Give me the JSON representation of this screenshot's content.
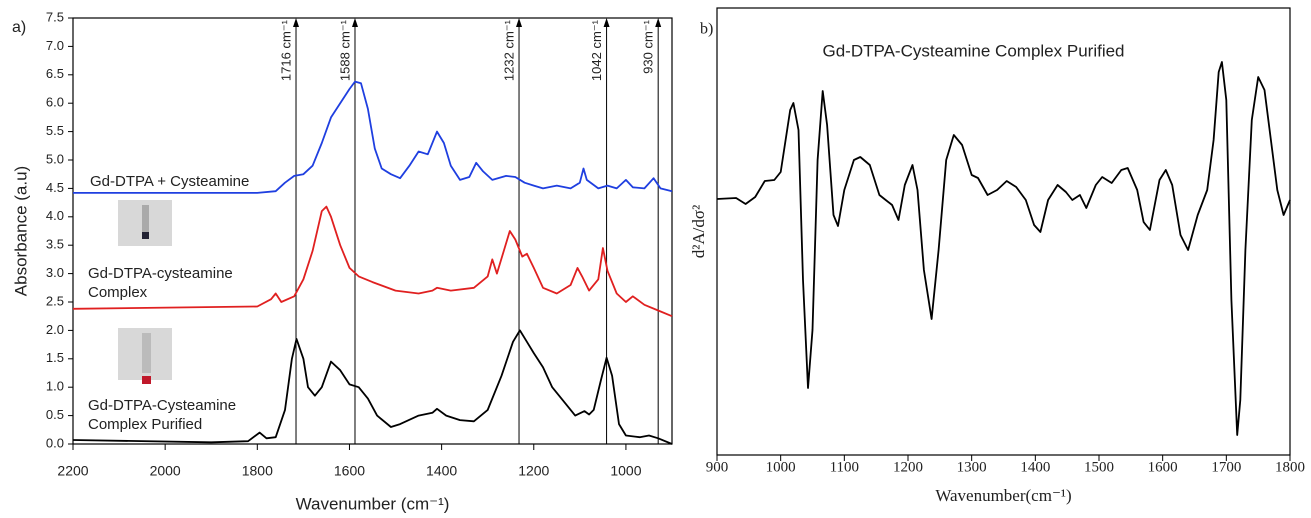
{
  "chart_data": [
    {
      "type": "line",
      "panel_label": "a)",
      "xlabel": "Wavenumber (cm⁻¹)",
      "ylabel": "Absorbance (a.u)",
      "xlim": [
        2200,
        900
      ],
      "xticks": [
        2200,
        2000,
        1800,
        1600,
        1400,
        1200,
        1000
      ],
      "ylim": [
        0,
        7.5
      ],
      "yticks": [
        {
          "value": 0,
          "label": "0.0"
        },
        0.5,
        {
          "value": 1,
          "label": "1.0"
        },
        1.5,
        {
          "value": 2,
          "label": "2.0"
        },
        2.5,
        {
          "value": 3,
          "label": "3.0"
        },
        3.5,
        {
          "value": 4,
          "label": "4.0"
        },
        4.5,
        {
          "value": 5,
          "label": "5.0"
        },
        5.5,
        {
          "value": 6,
          "label": "6.0"
        },
        6.5,
        {
          "value": 7,
          "label": "7.0"
        },
        7.5
      ],
      "annotations": [
        {
          "x": 1716,
          "label": "1716 cm⁻¹"
        },
        {
          "x": 1588,
          "label": "1588 cm⁻¹"
        },
        {
          "x": 1232,
          "label": "1232 cm⁻¹"
        },
        {
          "x": 1042,
          "label": "1042 cm⁻¹"
        },
        {
          "x": 930,
          "label": "930 cm⁻¹"
        }
      ],
      "series": [
        {
          "name": "Gd-DTPA + Cysteamine",
          "color": "#1f3fe0",
          "x": [
            2200,
            1800,
            1760,
            1740,
            1720,
            1700,
            1680,
            1660,
            1640,
            1620,
            1600,
            1588,
            1575,
            1560,
            1545,
            1530,
            1510,
            1490,
            1470,
            1450,
            1430,
            1410,
            1395,
            1380,
            1360,
            1340,
            1325,
            1310,
            1290,
            1260,
            1240,
            1220,
            1200,
            1180,
            1150,
            1120,
            1100,
            1092,
            1085,
            1060,
            1040,
            1020,
            1000,
            985,
            960,
            940,
            925,
            900
          ],
          "values": [
            4.42,
            4.42,
            4.45,
            4.6,
            4.72,
            4.75,
            4.9,
            5.3,
            5.75,
            6.0,
            6.25,
            6.38,
            6.35,
            5.9,
            5.2,
            4.85,
            4.75,
            4.68,
            4.9,
            5.15,
            5.1,
            5.5,
            5.3,
            4.9,
            4.65,
            4.7,
            4.95,
            4.8,
            4.65,
            4.72,
            4.7,
            4.6,
            4.55,
            4.5,
            4.55,
            4.5,
            4.6,
            4.85,
            4.65,
            4.5,
            4.55,
            4.5,
            4.65,
            4.52,
            4.5,
            4.68,
            4.5,
            4.45
          ]
        },
        {
          "name": "Gd-DTPA-cysteamine Complex",
          "color": "#e02020",
          "x": [
            2200,
            1800,
            1770,
            1760,
            1748,
            1720,
            1700,
            1680,
            1660,
            1650,
            1640,
            1620,
            1600,
            1580,
            1550,
            1500,
            1450,
            1420,
            1410,
            1380,
            1330,
            1300,
            1290,
            1280,
            1265,
            1252,
            1240,
            1225,
            1215,
            1200,
            1180,
            1150,
            1120,
            1105,
            1095,
            1080,
            1060,
            1050,
            1040,
            1020,
            1000,
            985,
            960,
            930,
            900
          ],
          "values": [
            2.38,
            2.42,
            2.55,
            2.65,
            2.5,
            2.6,
            2.9,
            3.4,
            4.1,
            4.18,
            4.0,
            3.5,
            3.1,
            2.95,
            2.85,
            2.7,
            2.65,
            2.7,
            2.75,
            2.7,
            2.75,
            2.95,
            3.25,
            3.0,
            3.4,
            3.75,
            3.6,
            3.3,
            3.35,
            3.1,
            2.75,
            2.65,
            2.8,
            3.1,
            2.95,
            2.7,
            2.9,
            3.45,
            3.05,
            2.65,
            2.5,
            2.6,
            2.45,
            2.35,
            2.25
          ]
        },
        {
          "name": "Gd-DTPA-Cysteamine Complex Purified",
          "color": "#000000",
          "x": [
            2200,
            1900,
            1820,
            1795,
            1780,
            1760,
            1740,
            1725,
            1715,
            1700,
            1690,
            1675,
            1660,
            1640,
            1620,
            1600,
            1580,
            1560,
            1540,
            1510,
            1490,
            1450,
            1420,
            1410,
            1390,
            1360,
            1330,
            1300,
            1270,
            1245,
            1230,
            1215,
            1200,
            1180,
            1160,
            1130,
            1110,
            1090,
            1080,
            1070,
            1055,
            1042,
            1030,
            1015,
            1000,
            970,
            950,
            930,
            900
          ],
          "values": [
            0.07,
            0.03,
            0.05,
            0.2,
            0.1,
            0.12,
            0.6,
            1.5,
            1.85,
            1.5,
            1.0,
            0.85,
            1.0,
            1.45,
            1.3,
            1.05,
            1.0,
            0.8,
            0.5,
            0.3,
            0.35,
            0.5,
            0.55,
            0.62,
            0.5,
            0.42,
            0.4,
            0.6,
            1.2,
            1.8,
            2.0,
            1.8,
            1.6,
            1.35,
            1.0,
            0.7,
            0.5,
            0.58,
            0.52,
            0.6,
            1.1,
            1.52,
            1.2,
            0.35,
            0.15,
            0.12,
            0.15,
            0.1,
            0.0
          ]
        }
      ]
    },
    {
      "type": "line",
      "panel_label": "b)",
      "title": "Gd-DTPA-Cysteamine Complex Purified",
      "xlabel": "Wavenumber(cm⁻¹)",
      "ylabel": "d²A/dσ²",
      "xlim": [
        900,
        1800
      ],
      "xticks": [
        900,
        1000,
        1100,
        1200,
        1300,
        1400,
        1500,
        1600,
        1700,
        1800
      ],
      "ylim": [
        -2.56,
        1.91
      ],
      "series": [
        {
          "color": "#000000",
          "x": [
            900,
            930,
            945,
            960,
            975,
            990,
            1000,
            1015,
            1020,
            1028,
            1035,
            1043,
            1050,
            1058,
            1066,
            1073,
            1083,
            1090,
            1100,
            1115,
            1125,
            1140,
            1155,
            1165,
            1175,
            1185,
            1195,
            1207,
            1215,
            1225,
            1237,
            1248,
            1260,
            1272,
            1285,
            1300,
            1310,
            1325,
            1340,
            1355,
            1370,
            1385,
            1398,
            1408,
            1420,
            1435,
            1448,
            1458,
            1470,
            1480,
            1495,
            1505,
            1520,
            1535,
            1545,
            1560,
            1570,
            1580,
            1595,
            1605,
            1615,
            1628,
            1640,
            1655,
            1670,
            1680,
            1688,
            1693,
            1700,
            1708,
            1717,
            1722,
            1730,
            1740,
            1750,
            1760,
            1770,
            1780,
            1790,
            1800
          ],
          "values": [
            0,
            0.01,
            -0.05,
            0.02,
            0.18,
            0.19,
            0.27,
            0.89,
            0.96,
            0.69,
            -0.81,
            -1.89,
            -1.31,
            0.39,
            1.08,
            0.74,
            -0.16,
            -0.27,
            0.09,
            0.39,
            0.42,
            0.34,
            0.04,
            -0.01,
            -0.06,
            -0.21,
            0.14,
            0.34,
            0.09,
            -0.71,
            -1.2,
            -0.51,
            0.39,
            0.64,
            0.54,
            0.24,
            0.21,
            0.04,
            0.09,
            0.18,
            0.12,
            -0.01,
            -0.26,
            -0.33,
            -0.01,
            0.14,
            0.07,
            -0.01,
            0.04,
            -0.09,
            0.14,
            0.22,
            0.16,
            0.29,
            0.31,
            0.09,
            -0.23,
            -0.31,
            0.19,
            0.29,
            0.14,
            -0.36,
            -0.51,
            -0.16,
            0.09,
            0.59,
            1.27,
            1.37,
            0.99,
            -1.01,
            -2.36,
            -2.01,
            -0.51,
            0.79,
            1.22,
            1.09,
            0.59,
            0.09,
            -0.16,
            -0.01
          ]
        }
      ]
    }
  ]
}
